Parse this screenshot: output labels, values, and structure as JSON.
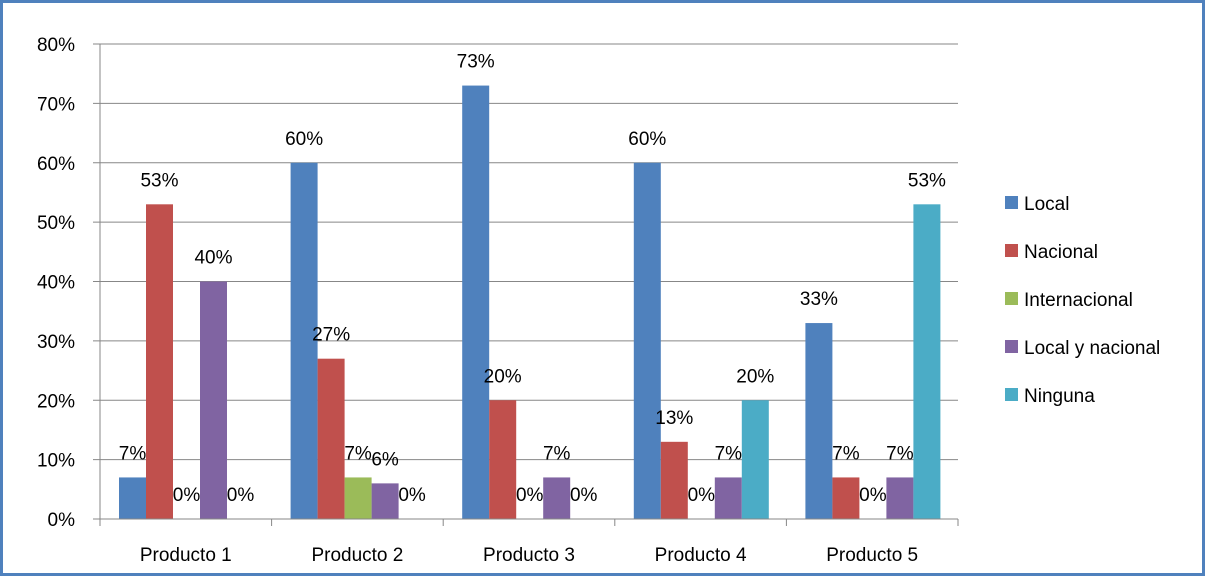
{
  "chart_data": {
    "type": "bar",
    "title": "",
    "xlabel": "",
    "ylabel": "",
    "categories": [
      "Producto 1",
      "Producto 2",
      "Producto 3",
      "Producto 4",
      "Producto 5"
    ],
    "ylim": [
      0,
      80
    ],
    "yticks": [
      "0%",
      "10%",
      "20%",
      "30%",
      "40%",
      "50%",
      "60%",
      "70%",
      "80%"
    ],
    "grid": true,
    "legend_position": "right",
    "series": [
      {
        "name": "Local",
        "color": "#4f81bd",
        "values": [
          7,
          60,
          73,
          60,
          33
        ],
        "labels": [
          "7%",
          "60%",
          "73%",
          "60%",
          "33%"
        ]
      },
      {
        "name": "Nacional",
        "color": "#c0504d",
        "values": [
          53,
          27,
          20,
          13,
          7
        ],
        "labels": [
          "53%",
          "27%",
          "20%",
          "13%",
          "7%"
        ]
      },
      {
        "name": "Internacional",
        "color": "#9bbb59",
        "values": [
          0,
          7,
          0,
          0,
          0
        ],
        "labels": [
          "0%",
          "7%",
          "0%",
          "0%",
          "0%"
        ]
      },
      {
        "name": "Local y nacional",
        "color": "#8064a2",
        "values": [
          40,
          6,
          7,
          7,
          7
        ],
        "labels": [
          "40%",
          "6%",
          "7%",
          "7%",
          "7%"
        ]
      },
      {
        "name": "Ninguna",
        "color": "#4bacc6",
        "values": [
          0,
          0,
          0,
          20,
          53
        ],
        "labels": [
          "0%",
          "0%",
          "0%",
          "20%",
          "53%"
        ]
      }
    ]
  }
}
